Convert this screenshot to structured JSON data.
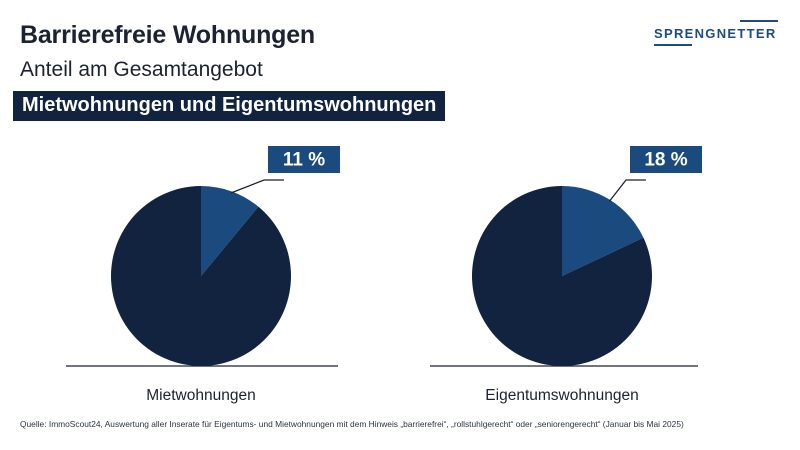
{
  "header": {
    "title": "Barrierefreie Wohnungen",
    "subtitle": "Anteil am Gesamtangebot",
    "banner": "Mietwohnungen und Eigentumswohnungen"
  },
  "logo": {
    "text": "SPRENGNETTER"
  },
  "colors": {
    "remainder": "#12233f",
    "highlight": "#1a4a7e",
    "label_bg": "#1a4a7e",
    "banner_bg": "#12233f",
    "brand": "#1f4a85"
  },
  "chart_data": [
    {
      "type": "pie",
      "title": "Mietwohnungen",
      "slices": [
        {
          "name": "",
          "value": 11,
          "highlight": true
        },
        {
          "name": "",
          "value": 89,
          "highlight": false
        }
      ],
      "data_label": "11 %"
    },
    {
      "type": "pie",
      "title": "Eigentumswohnungen",
      "slices": [
        {
          "name": "",
          "value": 18,
          "highlight": true
        },
        {
          "name": "",
          "value": 82,
          "highlight": false
        }
      ],
      "data_label": "18 %"
    }
  ],
  "footer": {
    "source": "Quelle: ImmoScout24, Auswertung aller Inserate für Eigentums- und Mietwohnungen mit dem Hinweis „barrierefrei“, „rollstuhlgerecht“ oder „seniorengerecht“ (Januar bis Mai 2025)"
  }
}
